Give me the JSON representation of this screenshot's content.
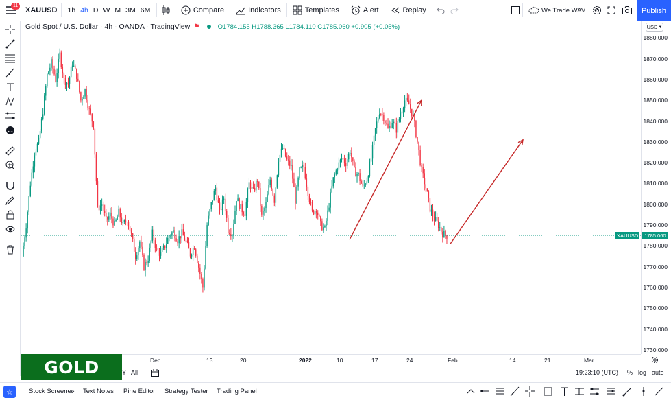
{
  "toolbar": {
    "notifications": "11",
    "symbol": "XAUUSD",
    "timeframes": [
      "1h",
      "4h",
      "D",
      "W",
      "M",
      "3M",
      "6M"
    ],
    "active_timeframe": "4h",
    "compare": "Compare",
    "indicators": "Indicators",
    "templates": "Templates",
    "alert": "Alert",
    "replay": "Replay",
    "layout_name": "We Trade WAV...",
    "publish": "Publish"
  },
  "legend": {
    "title": "Gold Spot / U.S. Dollar · 4h · OANDA · TradingView",
    "ohlc": "O1784.155 H1788.365 L1784.110 C1785.060 +0.905 (+0.05%)"
  },
  "price_axis": {
    "currency": "USD",
    "ticks": [
      "1880.000",
      "1870.000",
      "1860.000",
      "1850.000",
      "1840.000",
      "1830.000",
      "1820.000",
      "1810.000",
      "1800.000",
      "1790.000",
      "1780.000",
      "1770.000",
      "1760.000",
      "1750.000",
      "1740.000",
      "1730.000"
    ],
    "last_label": "XAUUSD",
    "last_price": "1785.060"
  },
  "time_axis": {
    "ticks": [
      "Dec",
      "13",
      "20",
      "2022",
      "10",
      "17",
      "24",
      "Feb",
      "14",
      "21",
      "Mar"
    ]
  },
  "banner": "GOLD",
  "range_bar": {
    "y": "Y",
    "all": "All",
    "clock": "19:23:10 (UTC)",
    "percent": "%",
    "log": "log",
    "auto": "auto"
  },
  "bottom": {
    "tabs": [
      "Stock Screener",
      "Text Notes",
      "Pine Editor",
      "Strategy Tester",
      "Trading Panel"
    ]
  },
  "colors": {
    "up": "#089981",
    "down": "#f23645",
    "accent": "#2962ff",
    "arrow": "#c62828",
    "banner": "#0b6e1d"
  },
  "chart_data": {
    "type": "candlestick",
    "instrument": "XAUUSD",
    "timeframe": "4h",
    "ylim": [
      1728,
      1888
    ],
    "close_path": [
      1775,
      1790,
      1810,
      1825,
      1830,
      1845,
      1862,
      1868,
      1860,
      1872,
      1860,
      1858,
      1868,
      1862,
      1850,
      1855,
      1845,
      1838,
      1798,
      1800,
      1792,
      1795,
      1790,
      1796,
      1790,
      1793,
      1785,
      1775,
      1782,
      1770,
      1774,
      1786,
      1778,
      1776,
      1780,
      1785,
      1787,
      1783,
      1786,
      1782,
      1776,
      1780,
      1770,
      1760,
      1790,
      1800,
      1808,
      1796,
      1803,
      1788,
      1786,
      1803,
      1798,
      1796,
      1810,
      1806,
      1812,
      1794,
      1800,
      1812,
      1802,
      1822,
      1827,
      1821,
      1818,
      1802,
      1816,
      1818,
      1806,
      1796,
      1798,
      1790,
      1788,
      1800,
      1812,
      1818,
      1822,
      1820,
      1826,
      1816,
      1814,
      1808,
      1812,
      1822,
      1836,
      1845,
      1842,
      1836,
      1840,
      1836,
      1844,
      1850,
      1848,
      1842,
      1830,
      1816,
      1808,
      1798,
      1793,
      1790,
      1786,
      1785.06
    ],
    "last_close": 1785.06,
    "annotations": [
      {
        "type": "arrow",
        "from": [
          "2022-01-10",
          1783
        ],
        "to": [
          "2022-01-25",
          1850
        ]
      },
      {
        "type": "arrow",
        "from": [
          "2022-01-28",
          1781
        ],
        "to": [
          "2022-02-11",
          1831
        ]
      }
    ]
  }
}
